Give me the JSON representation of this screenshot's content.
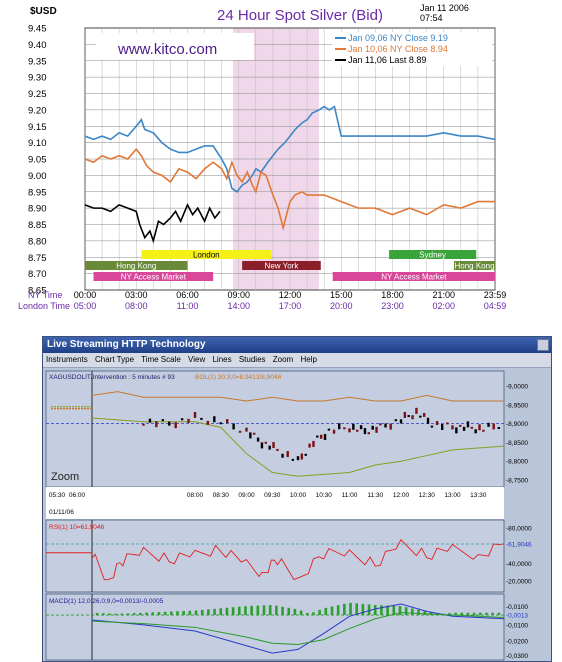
{
  "top_chart": {
    "units_label": "$USD",
    "title": "24 Hour Spot Silver (Bid)",
    "date": "Jan 11 2006",
    "time": "07:54",
    "watermark": "www.kitco.com",
    "legend": [
      {
        "label": "Jan 09,06 NY Close 9.19",
        "color": "#3d86c6"
      },
      {
        "label": "Jan 10,06 NY Close 8.94",
        "color": "#e07838"
      },
      {
        "label": "Jan 11,06 Last 8.89",
        "color": "#000000"
      }
    ],
    "sessions": [
      {
        "label": "London",
        "color": "#f4f018",
        "text_color": "#000000"
      },
      {
        "label": "Sydney",
        "color": "#3aa43a",
        "text_color": "#ffffff"
      },
      {
        "label": "Hong Kong",
        "color": "#6a8a3a",
        "text_color": "#ffffff"
      },
      {
        "label": "New York",
        "color": "#8a1f2a",
        "text_color": "#ffffff"
      },
      {
        "label": "Hong Kong",
        "color": "#6a8a3a",
        "text_color": "#ffffff"
      },
      {
        "label": "NY Access Market",
        "color": "#d9479a",
        "text_color": "#ffffff"
      },
      {
        "label": "NY Access Market",
        "color": "#d9479a",
        "text_color": "#ffffff"
      }
    ],
    "x_row_titles": {
      "ny": "NY Time",
      "london": "London Time"
    },
    "ny_ticks": [
      "00:00",
      "03:00",
      "06:00",
      "09:00",
      "12:00",
      "15:00",
      "18:00",
      "21:00",
      "23:59"
    ],
    "london_ticks": [
      "05:00",
      "08:00",
      "11:00",
      "14:00",
      "17:00",
      "20:00",
      "23:00",
      "02:00",
      "04:59"
    ]
  },
  "chart_data": [
    {
      "type": "line",
      "title": "24 Hour Spot Silver (Bid)",
      "ylabel": "$USD",
      "xlabel": "NY Time",
      "ylim": [
        8.65,
        9.45
      ],
      "y_ticks": [
        9.45,
        9.4,
        9.35,
        9.3,
        9.25,
        9.2,
        9.15,
        9.1,
        9.05,
        9.0,
        8.95,
        8.9,
        8.85,
        8.8,
        8.75,
        8.7,
        8.65
      ],
      "x_range_hours": [
        0,
        24
      ],
      "grid": true,
      "series": [
        {
          "name": "Jan 09,06 NY Close 9.19",
          "color": "#3d86c6",
          "x": [
            0,
            0.5,
            1,
            1.5,
            2,
            2.5,
            3,
            3.3,
            3.5,
            4,
            4.5,
            5,
            5.5,
            6,
            6.5,
            7,
            7.5,
            8,
            8.3,
            8.6,
            8.9,
            9.2,
            9.5,
            9.8,
            10,
            10.3,
            10.7,
            11,
            11.3,
            11.7,
            12,
            12.3,
            12.7,
            13,
            13.3,
            13.7,
            14,
            14.3,
            14.6,
            15,
            16,
            17,
            18,
            19,
            20,
            21,
            22,
            23,
            23.99
          ],
          "y": [
            9.12,
            9.11,
            9.12,
            9.11,
            9.13,
            9.12,
            9.15,
            9.17,
            9.14,
            9.13,
            9.1,
            9.08,
            9.07,
            9.07,
            9.08,
            9.09,
            9.09,
            9.05,
            9.02,
            8.96,
            8.95,
            8.97,
            8.98,
            9.0,
            9.02,
            9.01,
            9.04,
            9.06,
            9.08,
            9.1,
            9.12,
            9.14,
            9.16,
            9.17,
            9.19,
            9.2,
            9.21,
            9.2,
            9.21,
            9.12,
            9.12,
            9.12,
            9.12,
            9.12,
            9.12,
            9.13,
            9.12,
            9.12,
            9.11
          ]
        },
        {
          "name": "Jan 10,06 NY Close 8.94",
          "color": "#e07838",
          "x": [
            0,
            0.5,
            1,
            1.5,
            2,
            2.5,
            3,
            3.3,
            3.6,
            4,
            4.5,
            5,
            5.5,
            6,
            6.5,
            7,
            7.5,
            8,
            8.3,
            8.6,
            8.9,
            9.2,
            9.5,
            9.8,
            10,
            10.3,
            10.6,
            11,
            11.3,
            11.6,
            12,
            12.3,
            12.7,
            13,
            14,
            15,
            16,
            17,
            18,
            19,
            20,
            21,
            22,
            23,
            23.99
          ],
          "y": [
            9.05,
            9.04,
            9.06,
            9.05,
            9.06,
            9.05,
            9.08,
            9.06,
            9.03,
            9.01,
            9.0,
            8.98,
            9.02,
            9.01,
            8.99,
            9.02,
            9.04,
            9.02,
            8.99,
            9.04,
            9.0,
            8.98,
            9.01,
            8.97,
            8.95,
            9.01,
            9.0,
            8.94,
            8.9,
            8.84,
            8.92,
            8.94,
            8.95,
            8.94,
            8.94,
            8.92,
            8.9,
            8.9,
            8.88,
            8.9,
            8.88,
            8.91,
            8.9,
            8.92,
            8.92
          ]
        },
        {
          "name": "Jan 11,06 Last 8.89",
          "color": "#000000",
          "x": [
            0,
            0.5,
            1,
            1.5,
            2,
            2.5,
            3,
            3.2,
            3.5,
            3.8,
            4,
            4.3,
            4.6,
            5,
            5.3,
            5.6,
            6,
            6.3,
            6.6,
            7,
            7.3,
            7.6,
            7.9
          ],
          "y": [
            8.91,
            8.9,
            8.9,
            8.89,
            8.91,
            8.9,
            8.89,
            8.85,
            8.81,
            8.83,
            8.8,
            8.86,
            8.85,
            8.87,
            8.89,
            8.86,
            8.91,
            8.88,
            8.9,
            8.86,
            8.9,
            8.87,
            8.89
          ]
        }
      ]
    },
    {
      "type": "line",
      "title": "XAGUSDOLIT/Intervention : 5 minutes # 93",
      "overlay_label": "BOL(1) 30;3;0=8,9413/8,9046",
      "ylim": [
        8.75,
        9.0
      ],
      "y_ticks": [
        "-9,0000",
        "-8,9500",
        "-8,9000",
        "-8,8500",
        "-8,8000",
        "-8,7500"
      ],
      "x_ticks": [
        "05:30",
        "06:00",
        "08:00",
        "08:30",
        "09:00",
        "09:30",
        "10:00",
        "10:30",
        "11:00",
        "11:30",
        "12:00",
        "12:30",
        "13:00",
        "13:30"
      ],
      "date_label": "01/11/06",
      "zoom_label": "Zoom",
      "series": [
        {
          "name": "upper band",
          "color": "#c8782a",
          "x": [
            6,
            6.5,
            7,
            7.5,
            8,
            8.5,
            9,
            9.5,
            10,
            10.5,
            11,
            11.5,
            12,
            12.5,
            13,
            13.5,
            14
          ],
          "y": [
            8.975,
            8.985,
            8.97,
            8.97,
            8.97,
            8.97,
            8.96,
            8.97,
            8.96,
            8.96,
            8.97,
            8.96,
            8.96,
            8.975,
            8.96,
            8.96,
            8.96
          ]
        },
        {
          "name": "lower band",
          "color": "#86a020",
          "x": [
            6,
            6.5,
            7,
            7.5,
            8,
            8.5,
            9,
            9.5,
            10,
            10.5,
            11,
            11.5,
            12,
            12.5,
            13,
            13.5,
            14
          ],
          "y": [
            8.915,
            8.91,
            8.905,
            8.905,
            8.905,
            8.89,
            8.82,
            8.77,
            8.76,
            8.765,
            8.77,
            8.79,
            8.8,
            8.815,
            8.83,
            8.835,
            8.84
          ]
        },
        {
          "name": "price",
          "color": "#000000",
          "x": [
            7,
            7.5,
            8,
            8.5,
            9,
            9.3,
            9.6,
            10,
            10.3,
            10.6,
            11,
            11.3,
            11.6,
            12,
            12.3,
            12.6,
            13,
            13.3,
            13.6,
            14
          ],
          "y": [
            8.905,
            8.9,
            8.915,
            8.905,
            8.88,
            8.85,
            8.83,
            8.8,
            8.85,
            8.88,
            8.89,
            8.88,
            8.89,
            8.91,
            8.93,
            8.9,
            8.89,
            8.89,
            8.885,
            8.9
          ]
        }
      ]
    },
    {
      "type": "line",
      "title": "RSI(1) 10=61,9046",
      "ylim": [
        10,
        80
      ],
      "y_ticks": [
        "-80,0000",
        "-61,9046",
        "-40,0000",
        "-20,0000"
      ],
      "series": [
        {
          "name": "RSI",
          "color": "#e02020",
          "x": [
            6,
            6.3,
            6.6,
            7,
            7.5,
            8,
            8.5,
            9,
            9.3,
            9.6,
            10,
            10.5,
            11,
            11.5,
            12,
            12.5,
            13,
            13.5,
            14
          ],
          "y": [
            52,
            20,
            42,
            55,
            45,
            50,
            55,
            38,
            30,
            45,
            22,
            50,
            52,
            40,
            62,
            48,
            55,
            50,
            62
          ]
        }
      ]
    },
    {
      "type": "line",
      "title": "MACD(1) 12,0;26,0;9,0=0,0013/-0,0005",
      "ylim": [
        -0.032,
        0.012
      ],
      "y_ticks": [
        "-0,0100",
        "-0,0013",
        "-0,0100",
        "-0,0200",
        "-0,0300"
      ],
      "series": [
        {
          "name": "MACD",
          "color": "#2a3ac8",
          "x": [
            6,
            7,
            8,
            9,
            9.5,
            10,
            10.5,
            11,
            11.5,
            12,
            12.5,
            13,
            13.5,
            14
          ],
          "y": [
            -0.001,
            -0.005,
            -0.01,
            -0.022,
            -0.028,
            -0.025,
            -0.012,
            0.002,
            0.008,
            0.012,
            0.006,
            0.002,
            0.001,
            0.0
          ]
        },
        {
          "name": "Signal",
          "color": "#2a9a2a",
          "x": [
            6,
            7,
            8,
            9,
            9.5,
            10,
            10.5,
            11,
            11.5,
            12,
            12.5,
            13,
            13.5,
            14
          ],
          "y": [
            -0.002,
            -0.004,
            -0.007,
            -0.015,
            -0.02,
            -0.021,
            -0.017,
            -0.008,
            0.0,
            0.005,
            0.004,
            0.003,
            0.002,
            0.001
          ]
        }
      ]
    }
  ],
  "app": {
    "title": "Live Streaming HTTP Technology",
    "menu": [
      "Instruments",
      "Chart Type",
      "Time Scale",
      "View",
      "Lines",
      "Studies",
      "Zoom",
      "Help"
    ]
  }
}
